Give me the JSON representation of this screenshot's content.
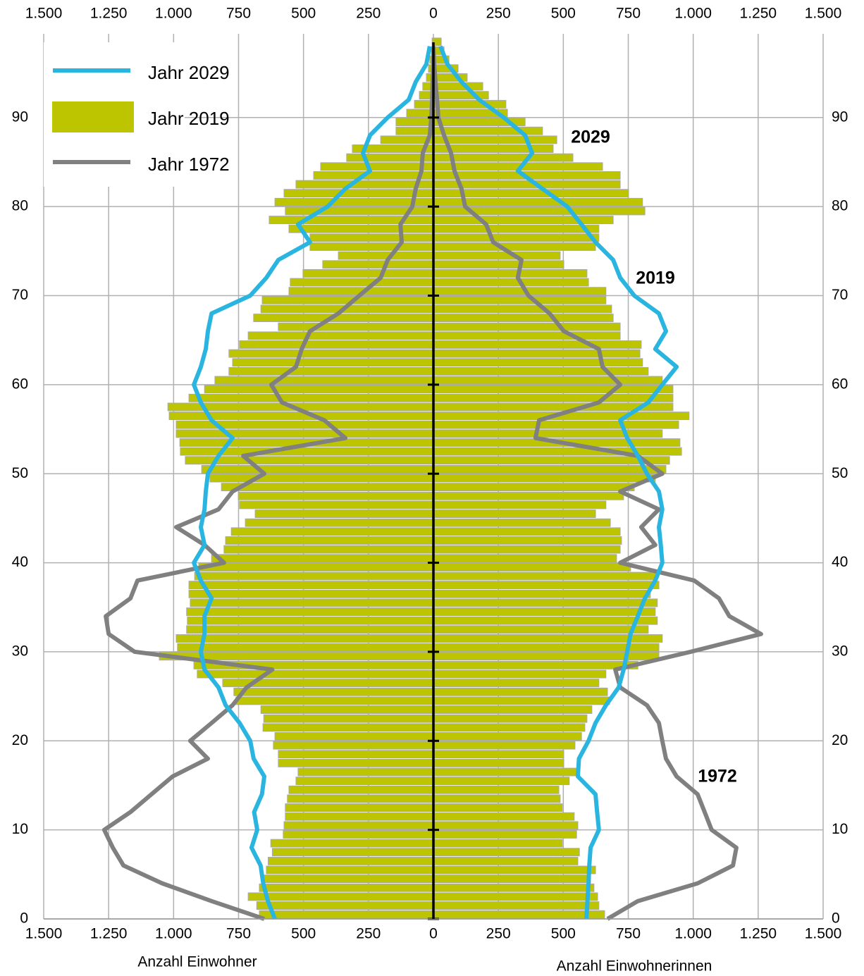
{
  "chart_data": {
    "type": "population-pyramid",
    "x_label_left": "Anzahl Einwohner",
    "x_label_right": "Anzahl Einwohnerinnen",
    "xlim": [
      0,
      1500
    ],
    "xticks": [
      0,
      250,
      500,
      750,
      {
        "value": 1000,
        "label": "1.000"
      },
      {
        "value": 1250,
        "label": "1.250"
      },
      {
        "value": 1500,
        "label": "1.500"
      }
    ],
    "ylim": [
      0,
      99.4
    ],
    "yticks": [
      0,
      10,
      20,
      30,
      40,
      50,
      60,
      70,
      80,
      90
    ],
    "grid": true,
    "ages": [
      0,
      1,
      2,
      3,
      4,
      5,
      6,
      7,
      8,
      9,
      10,
      11,
      12,
      13,
      14,
      15,
      16,
      17,
      18,
      19,
      20,
      21,
      22,
      23,
      24,
      25,
      26,
      27,
      28,
      29,
      30,
      31,
      32,
      33,
      34,
      35,
      36,
      37,
      38,
      39,
      40,
      41,
      42,
      43,
      44,
      45,
      46,
      47,
      48,
      49,
      50,
      51,
      52,
      53,
      54,
      55,
      56,
      57,
      58,
      59,
      60,
      61,
      62,
      63,
      64,
      65,
      66,
      67,
      68,
      69,
      70,
      71,
      72,
      73,
      74,
      75,
      76,
      77,
      78,
      79,
      80,
      81,
      82,
      83,
      84,
      85,
      86,
      87,
      88,
      89,
      90,
      91,
      92,
      93,
      94,
      95,
      96,
      97,
      98
    ],
    "series": [
      {
        "name": "Jahr 2029",
        "type": "line",
        "color": "#29b5e0",
        "x": [
          0,
          2,
          4,
          6,
          8,
          10,
          12,
          14,
          16,
          18,
          20,
          22,
          24,
          26,
          28,
          30,
          32,
          34,
          36,
          38,
          40,
          42,
          44,
          46,
          48,
          50,
          52,
          54,
          56,
          58,
          60,
          62,
          64,
          66,
          68,
          70,
          72,
          74,
          76,
          78,
          80,
          82,
          84,
          86,
          88,
          90,
          92,
          94,
          96,
          98
        ],
        "male": [
          610,
          637,
          655,
          665,
          700,
          678,
          690,
          660,
          651,
          692,
          705,
          746,
          800,
          827,
          881,
          895,
          881,
          881,
          854,
          895,
          922,
          881,
          895,
          881,
          876,
          868,
          827,
          773,
          854,
          895,
          922,
          895,
          876,
          868,
          854,
          705,
          643,
          597,
          475,
          521,
          407,
          339,
          244,
          271,
          244,
          176,
          95,
          68,
          27,
          14
        ],
        "female": [
          589,
          593,
          597,
          600,
          605,
          637,
          630,
          624,
          556,
          560,
          597,
          624,
          664,
          713,
          732,
          746,
          759,
          787,
          814,
          854,
          881,
          875,
          868,
          881,
          868,
          822,
          787,
          746,
          719,
          827,
          881,
          936,
          854,
          895,
          868,
          773,
          719,
          692,
          624,
          570,
          515,
          420,
          325,
          380,
          353,
          271,
          176,
          108,
          54,
          27
        ]
      },
      {
        "name": "Jahr 2019",
        "type": "bar",
        "color": "#bcc500",
        "male": [
          670,
          680,
          713,
          670,
          660,
          643,
          636,
          620,
          626,
          578,
          575,
          570,
          570,
          562,
          556,
          529,
          521,
          597,
          597,
          616,
          610,
          656,
          653,
          664,
          760,
          768,
          811,
          909,
          922,
          1055,
          985,
          990,
          950,
          947,
          950,
          936,
          941,
          941,
          919,
          903,
          854,
          806,
          800,
          778,
          724,
          686,
          746,
          751,
          816,
          860,
          892,
          955,
          974,
          976,
          990,
          990,
          1017,
          1022,
          941,
          881,
          841,
          787,
          773,
          787,
          746,
          713,
          597,
          692,
          664,
          659,
          556,
          551,
          502,
          426,
          366,
          475,
          475,
          556,
          632,
          570,
          610,
          575,
          529,
          461,
          434,
          334,
          312,
          203,
          144,
          144,
          103,
          73,
          54,
          41,
          27,
          19,
          14,
          8,
          5
        ],
        "female": [
          659,
          637,
          632,
          618,
          605,
          624,
          556,
          562,
          496,
          551,
          556,
          542,
          496,
          488,
          483,
          523,
          556,
          502,
          502,
          545,
          570,
          583,
          591,
          610,
          678,
          670,
          637,
          664,
          787,
          868,
          868,
          881,
          827,
          862,
          854,
          862,
          835,
          868,
          854,
          759,
          705,
          719,
          724,
          719,
          681,
          624,
          664,
          732,
          773,
          854,
          895,
          909,
          955,
          949,
          881,
          944,
          984,
          922,
          922,
          922,
          881,
          827,
          805,
          795,
          800,
          719,
          719,
          692,
          686,
          664,
          664,
          597,
          591,
          502,
          488,
          624,
          637,
          637,
          692,
          814,
          805,
          751,
          719,
          719,
          651,
          537,
          461,
          475,
          420,
          353,
          285,
          279,
          212,
          190,
          130,
          95,
          60,
          41,
          30
        ]
      },
      {
        "name": "Jahr 1972",
        "type": "line",
        "color": "#808080",
        "x": [
          0,
          2,
          4,
          6,
          8,
          10,
          12,
          14,
          16,
          18,
          20,
          22,
          24,
          26,
          28,
          30,
          32,
          34,
          36,
          38,
          40,
          42,
          44,
          46,
          48,
          50,
          52,
          54,
          56,
          58,
          60,
          62,
          64,
          66,
          68,
          70,
          72,
          74,
          76,
          78,
          80,
          82,
          84,
          86,
          88,
          90,
          92,
          94,
          96,
          98
        ],
        "male": [
          651,
          854,
          1044,
          1193,
          1234,
          1267,
          1166,
          1085,
          1004,
          868,
          936,
          854,
          773,
          719,
          620,
          1150,
          1250,
          1261,
          1166,
          1139,
          806,
          881,
          990,
          827,
          773,
          651,
          732,
          339,
          420,
          583,
          624,
          529,
          507,
          475,
          366,
          285,
          203,
          176,
          122,
          127,
          81,
          68,
          46,
          41,
          14,
          8,
          5,
          3,
          0,
          0
        ],
        "female": [
          670,
          787,
          1017,
          1153,
          1166,
          1071,
          1044,
          1017,
          936,
          895,
          881,
          868,
          822,
          719,
          700,
          990,
          1261,
          1139,
          1099,
          1004,
          719,
          854,
          800,
          868,
          719,
          881,
          787,
          393,
          407,
          637,
          719,
          651,
          637,
          502,
          447,
          366,
          325,
          339,
          230,
          203,
          122,
          108,
          81,
          68,
          41,
          19,
          14,
          8,
          3,
          0
        ]
      }
    ],
    "annotations": [
      {
        "text": "2029",
        "color": "#29b5e0"
      },
      {
        "text": "2019",
        "color": "#bcc500"
      },
      {
        "text": "1972",
        "color": "#808080"
      }
    ]
  }
}
